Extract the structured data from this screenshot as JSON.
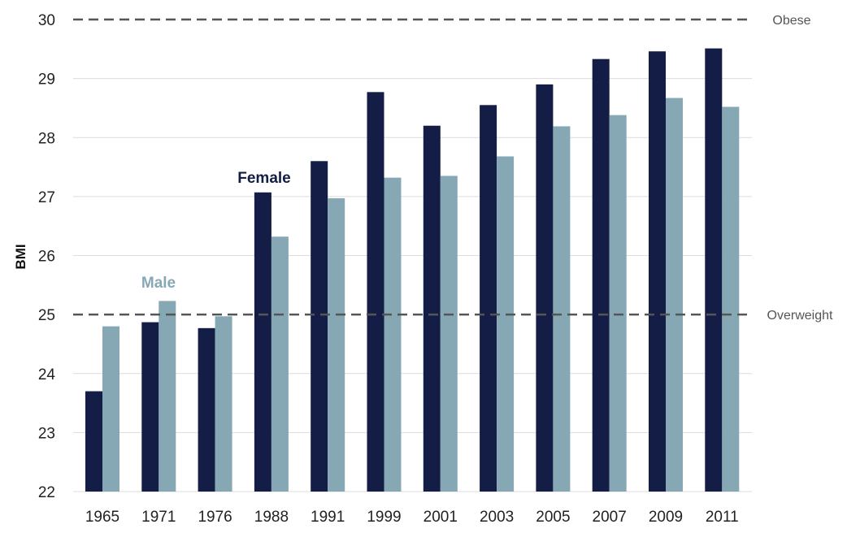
{
  "chart_data": {
    "type": "bar",
    "categories": [
      "1965",
      "1971",
      "1976",
      "1988",
      "1991",
      "1999",
      "2001",
      "2003",
      "2005",
      "2007",
      "2009",
      "2011"
    ],
    "series": [
      {
        "name": "Female",
        "color": "#131d45",
        "values": [
          23.7,
          24.87,
          24.77,
          27.07,
          27.6,
          28.77,
          28.2,
          28.55,
          28.9,
          29.33,
          29.46,
          29.51
        ]
      },
      {
        "name": "Male",
        "color": "#86a8b5",
        "values": [
          24.8,
          25.23,
          24.97,
          26.32,
          26.97,
          27.32,
          27.35,
          27.68,
          28.19,
          28.38,
          28.67,
          28.52
        ]
      }
    ],
    "ylabel": "BMI",
    "xlabel": "",
    "ylim": [
      22,
      30
    ],
    "yticks": [
      "22",
      "23",
      "24",
      "25",
      "26",
      "27",
      "28",
      "29",
      "30"
    ],
    "grid": true,
    "reference_lines": [
      {
        "value": 30,
        "label": "Obese"
      },
      {
        "value": 25,
        "label": "Overweight"
      }
    ]
  }
}
